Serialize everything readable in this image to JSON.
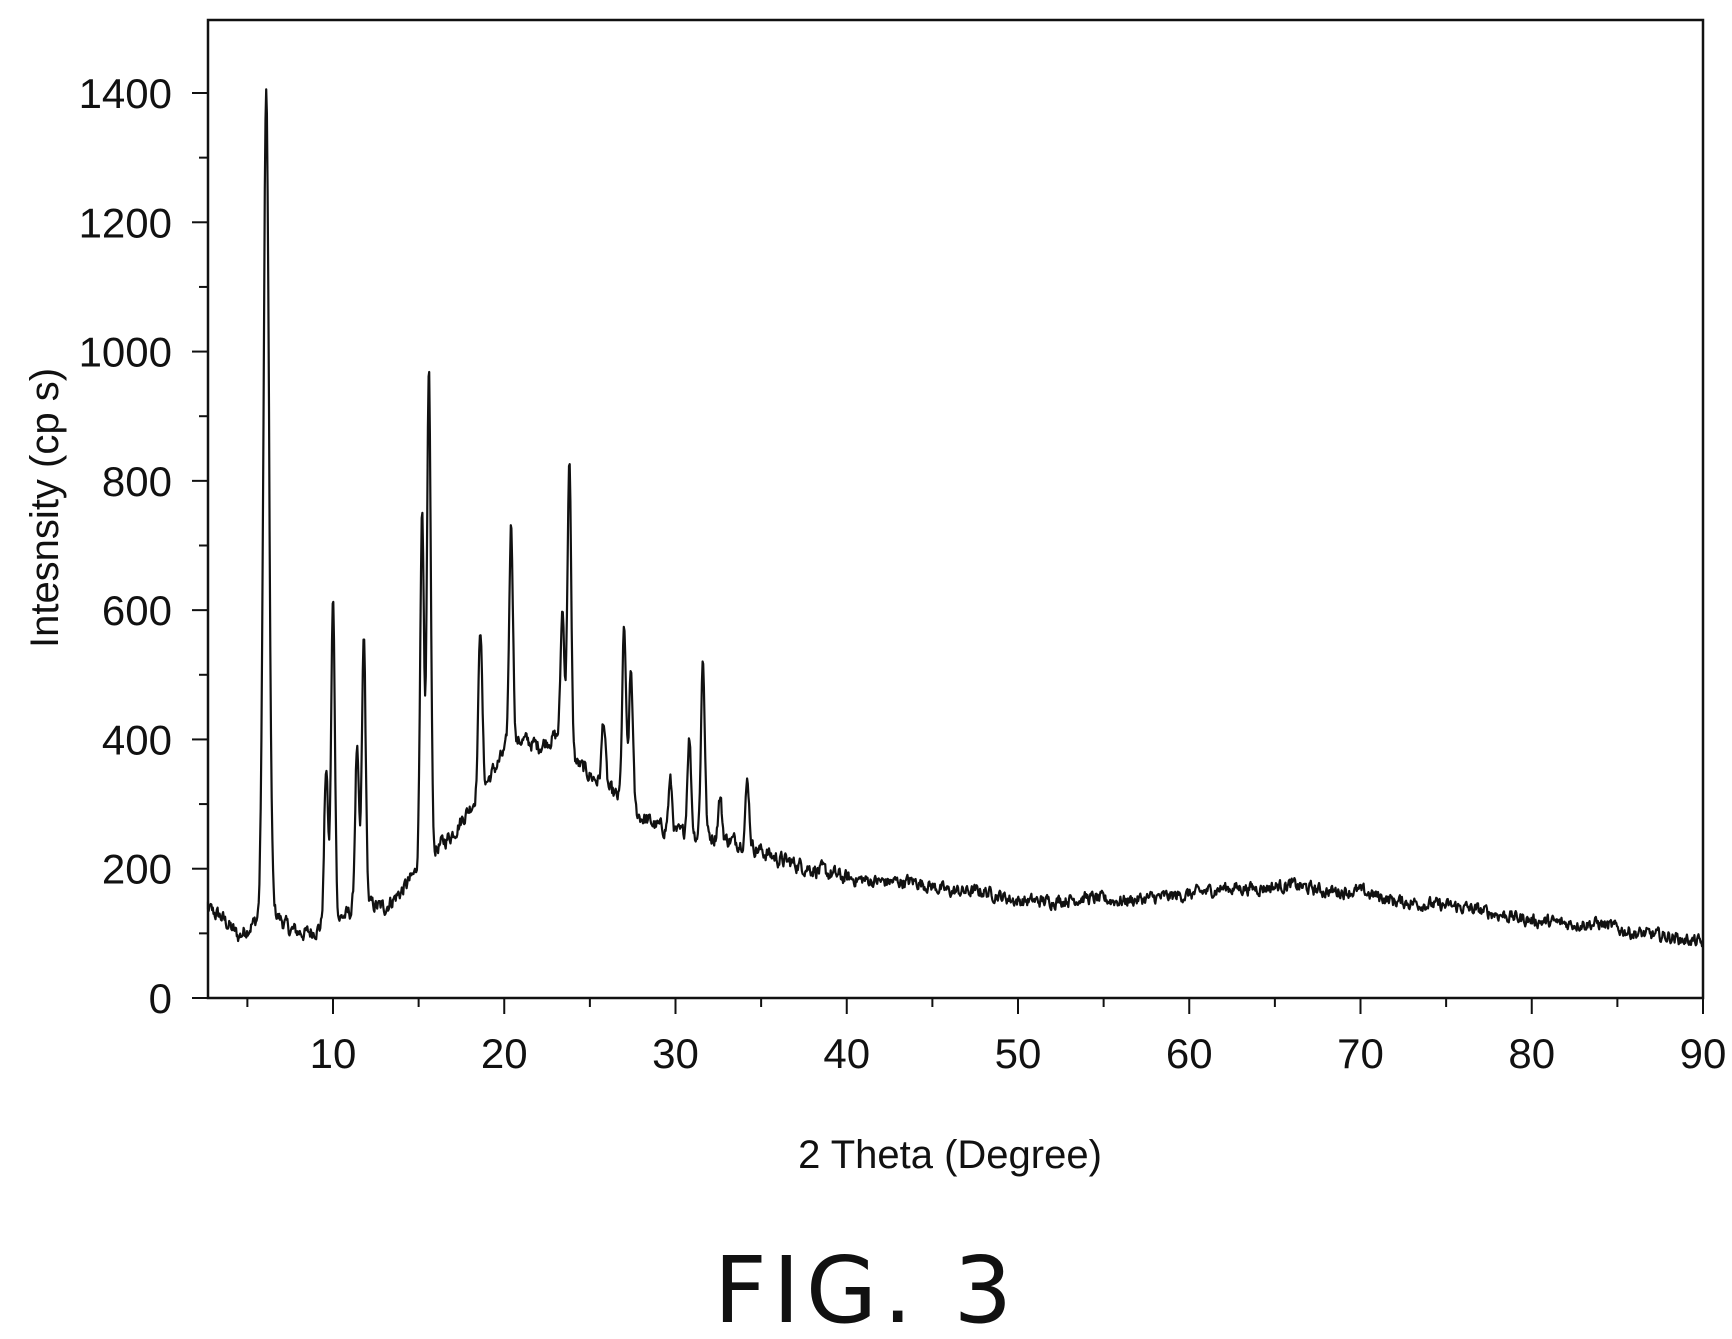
{
  "figure": {
    "caption": "FIG. 3"
  },
  "chart_data": {
    "type": "line",
    "title": "",
    "xlabel": "2 Theta (Degree)",
    "ylabel": "Intesnsity (cp s)",
    "xlim": [
      2.5,
      90
    ],
    "ylim": [
      0,
      1500
    ],
    "xticks": [
      10,
      20,
      30,
      40,
      50,
      60,
      70,
      80,
      90
    ],
    "yticks": [
      0,
      200,
      400,
      600,
      800,
      1000,
      1200,
      1400
    ],
    "grid": false,
    "legend": "none",
    "line_color": "#111111",
    "baseline": [
      [
        2.5,
        140
      ],
      [
        3.5,
        125
      ],
      [
        4.5,
        95
      ],
      [
        5.3,
        115
      ],
      [
        6.5,
        135
      ],
      [
        7.5,
        105
      ],
      [
        8.5,
        100
      ],
      [
        9.3,
        110
      ],
      [
        10.5,
        125
      ],
      [
        12,
        145
      ],
      [
        13,
        140
      ],
      [
        14,
        165
      ],
      [
        15,
        200
      ],
      [
        16,
        230
      ],
      [
        17,
        255
      ],
      [
        18,
        295
      ],
      [
        19,
        335
      ],
      [
        20,
        380
      ],
      [
        21,
        400
      ],
      [
        22,
        390
      ],
      [
        23,
        405
      ],
      [
        24,
        370
      ],
      [
        25,
        345
      ],
      [
        26,
        325
      ],
      [
        27,
        300
      ],
      [
        28,
        280
      ],
      [
        29,
        265
      ],
      [
        30,
        255
      ],
      [
        32,
        250
      ],
      [
        34,
        240
      ],
      [
        36,
        215
      ],
      [
        38,
        200
      ],
      [
        40,
        185
      ],
      [
        42,
        180
      ],
      [
        44,
        180
      ],
      [
        46,
        165
      ],
      [
        48,
        165
      ],
      [
        50,
        150
      ],
      [
        52,
        150
      ],
      [
        54,
        155
      ],
      [
        56,
        150
      ],
      [
        58,
        155
      ],
      [
        60,
        160
      ],
      [
        62,
        170
      ],
      [
        64,
        170
      ],
      [
        66,
        175
      ],
      [
        68,
        165
      ],
      [
        70,
        165
      ],
      [
        72,
        150
      ],
      [
        74,
        145
      ],
      [
        76,
        140
      ],
      [
        78,
        130
      ],
      [
        80,
        120
      ],
      [
        82,
        115
      ],
      [
        84,
        115
      ],
      [
        86,
        100
      ],
      [
        88,
        95
      ],
      [
        90,
        85
      ]
    ],
    "peaks": [
      {
        "x": 6.1,
        "y": 1400
      },
      {
        "x": 9.6,
        "y": 355
      },
      {
        "x": 10.0,
        "y": 615
      },
      {
        "x": 11.4,
        "y": 385
      },
      {
        "x": 11.8,
        "y": 555
      },
      {
        "x": 15.2,
        "y": 750
      },
      {
        "x": 15.6,
        "y": 975
      },
      {
        "x": 18.6,
        "y": 575
      },
      {
        "x": 20.4,
        "y": 735
      },
      {
        "x": 23.4,
        "y": 600
      },
      {
        "x": 23.8,
        "y": 825
      },
      {
        "x": 25.8,
        "y": 430
      },
      {
        "x": 27.0,
        "y": 570
      },
      {
        "x": 27.4,
        "y": 505
      },
      {
        "x": 29.7,
        "y": 335
      },
      {
        "x": 30.8,
        "y": 405
      },
      {
        "x": 31.6,
        "y": 525
      },
      {
        "x": 32.6,
        "y": 310
      },
      {
        "x": 34.2,
        "y": 335
      }
    ]
  }
}
